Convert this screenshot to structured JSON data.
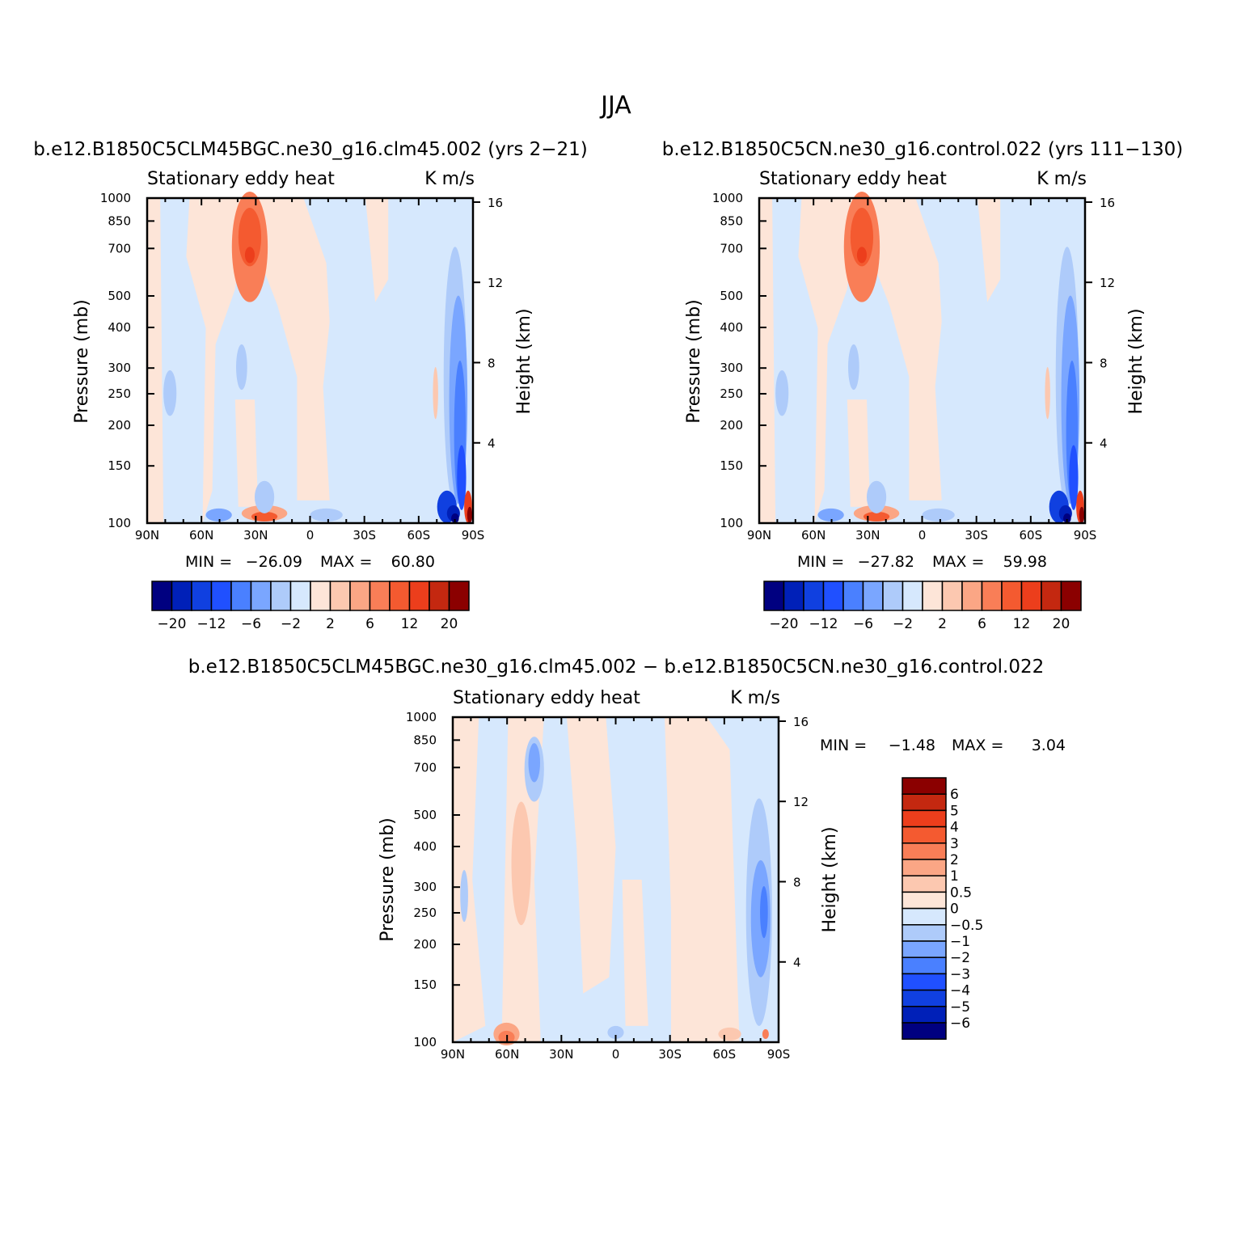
{
  "figure": {
    "season": "JJA",
    "subtitle": "Stationary eddy heat",
    "units": "K m/s",
    "ylabel_left": "Pressure (mb)",
    "ylabel_right": "Height (km)",
    "pressure_ticks": [
      "100",
      "150",
      "200",
      "250",
      "300",
      "400",
      "500",
      "700",
      "850",
      "1000"
    ],
    "height_ticks": [
      "16",
      "12",
      "8",
      "4"
    ],
    "lat_ticks": [
      "90N",
      "60N",
      "30N",
      "0",
      "30S",
      "60S",
      "90S"
    ],
    "min_label": "MIN =",
    "max_label": "MAX ="
  },
  "colors": {
    "abs_scale": [
      "#000080",
      "#0020b8",
      "#1040e0",
      "#2050ff",
      "#4a80ff",
      "#7aa6ff",
      "#aecbfa",
      "#d6e8fd",
      "#fde5d8",
      "#fcc8b0",
      "#fba685",
      "#f97e57",
      "#f45a30",
      "#ec3e1c",
      "#c42810",
      "#8b0000"
    ],
    "diff_scale": [
      "#000080",
      "#0020b8",
      "#1040e0",
      "#2050ff",
      "#4a80ff",
      "#7aa6ff",
      "#aecbfa",
      "#d6e8fd",
      "#fde5d8",
      "#fcc8b0",
      "#fba685",
      "#f97e57",
      "#f45a30",
      "#ec3e1c",
      "#c42810",
      "#8b0000"
    ]
  },
  "chart_data": [
    {
      "type": "heatmap",
      "title": "b.e12.B1850C5CLM45BGC.ne30_g16.clm45.002 (yrs 2−21)",
      "subtitle": "Stationary eddy heat",
      "units": "K m/s",
      "xlabel": "",
      "ylabel": "Pressure (mb)",
      "y2label": "Height (km)",
      "xlim": [
        90,
        -90
      ],
      "ylim": [
        1000,
        100
      ],
      "yscale": "log",
      "min": "−26.09",
      "max": "60.80",
      "levels_shown": [
        "−20",
        "−12",
        "−6",
        "−2",
        "2",
        "6",
        "12",
        "20"
      ],
      "n_color_bins": 16
    },
    {
      "type": "heatmap",
      "title": "b.e12.B1850C5CN.ne30_g16.control.022 (yrs 111−130)",
      "subtitle": "Stationary eddy heat",
      "units": "K m/s",
      "xlabel": "",
      "ylabel": "Pressure (mb)",
      "y2label": "Height (km)",
      "xlim": [
        90,
        -90
      ],
      "ylim": [
        1000,
        100
      ],
      "yscale": "log",
      "min": "−27.82",
      "max": "59.98",
      "levels_shown": [
        "−20",
        "−12",
        "−6",
        "−2",
        "2",
        "6",
        "12",
        "20"
      ],
      "n_color_bins": 16
    },
    {
      "type": "heatmap",
      "title": "b.e12.B1850C5CLM45BGC.ne30_g16.clm45.002 − b.e12.B1850C5CN.ne30_g16.control.022",
      "subtitle": "Stationary eddy heat",
      "units": "K m/s",
      "xlabel": "",
      "ylabel": "Pressure (mb)",
      "y2label": "Height (km)",
      "xlim": [
        90,
        -90
      ],
      "ylim": [
        1000,
        100
      ],
      "yscale": "log",
      "min": "−1.48",
      "max": "3.04",
      "levels_shown": [
        "6",
        "5",
        "4",
        "3",
        "2",
        "1",
        "0.5",
        "0",
        "−0.5",
        "−1",
        "−2",
        "−3",
        "−4",
        "−5",
        "−6"
      ],
      "n_color_bins": 16
    }
  ]
}
